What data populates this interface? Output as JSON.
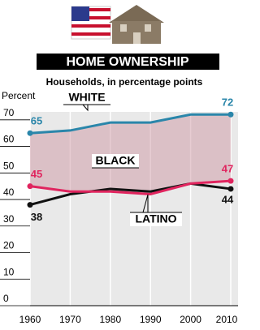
{
  "chart_data": {
    "type": "line",
    "title": "HOME OWNERSHIP",
    "subtitle": "Households, in percentage points",
    "y_label": "Percent",
    "x": [
      1960,
      1970,
      1980,
      1990,
      2000,
      2010
    ],
    "xlim": [
      1960,
      2010
    ],
    "xticks": [
      1960,
      1970,
      1980,
      1990,
      2000,
      2010
    ],
    "ylim": [
      0,
      73
    ],
    "yticks": [
      0,
      10,
      20,
      30,
      40,
      50,
      60,
      70
    ],
    "series": [
      {
        "name": "WHITE",
        "color": "#2a86aa",
        "values": [
          65,
          66,
          69,
          69,
          72,
          72
        ]
      },
      {
        "name": "BLACK",
        "color": "#111111",
        "values": [
          38,
          42,
          44,
          43,
          46,
          44
        ]
      },
      {
        "name": "LATINO",
        "color": "#e0245e",
        "values": [
          45,
          43,
          43,
          42,
          46,
          47
        ]
      }
    ]
  }
}
